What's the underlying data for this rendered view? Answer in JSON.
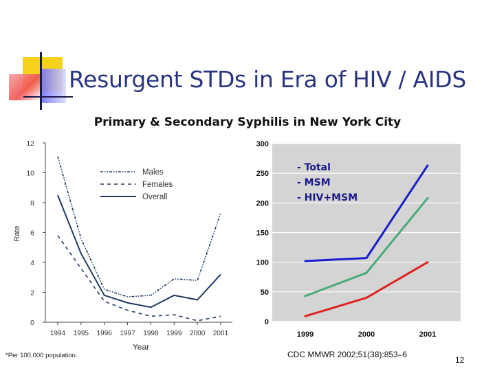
{
  "slide": {
    "title": "Resurgent STDs in Era of HIV / AIDS",
    "chart_title": "Primary & Secondary Syphilis in New York City",
    "footnote": "*Per 100,000 population.",
    "citation": "CDC MMWR 2002;51(38):853–6",
    "page_number": "12"
  },
  "chart_data": [
    {
      "type": "line",
      "title": "",
      "xlabel": "Year",
      "ylabel": "Rate",
      "x": [
        "1994",
        "1995",
        "1996",
        "1997",
        "1998",
        "1999",
        "2000",
        "2001"
      ],
      "xlim": [
        1994,
        2001
      ],
      "ylim": [
        0,
        12
      ],
      "yticks": [
        0,
        2,
        4,
        6,
        8,
        10,
        12
      ],
      "series": [
        {
          "name": "Males",
          "style": "dash-dot-dot",
          "color": "#1f3a5f",
          "values": [
            11.1,
            5.6,
            2.2,
            1.7,
            1.8,
            2.9,
            2.8,
            7.3
          ]
        },
        {
          "name": "Females",
          "style": "dashed",
          "color": "#1f3a5f",
          "values": [
            5.8,
            3.6,
            1.4,
            0.8,
            0.4,
            0.5,
            0.1,
            0.4
          ]
        },
        {
          "name": "Overall",
          "style": "solid",
          "color": "#1f3a5f",
          "values": [
            8.5,
            4.6,
            1.8,
            1.3,
            1.0,
            1.8,
            1.5,
            3.2
          ]
        }
      ],
      "legend": "upper-middle"
    },
    {
      "type": "line",
      "title": "",
      "x": [
        "1999",
        "2000",
        "2001"
      ],
      "ylim": [
        0,
        300
      ],
      "yticks": [
        0,
        50,
        100,
        150,
        200,
        250,
        300
      ],
      "legend_lines": [
        "- Total",
        "- MSM",
        "- HIV+MSM"
      ],
      "series": [
        {
          "name": "Total",
          "color": "#1a1ad0",
          "values": [
            102,
            107,
            263
          ]
        },
        {
          "name": "MSM",
          "color": "#4aaa7a",
          "values": [
            43,
            82,
            208
          ]
        },
        {
          "name": "HIV+MSM",
          "color": "#dd2222",
          "values": [
            9,
            40,
            100
          ]
        }
      ]
    }
  ]
}
